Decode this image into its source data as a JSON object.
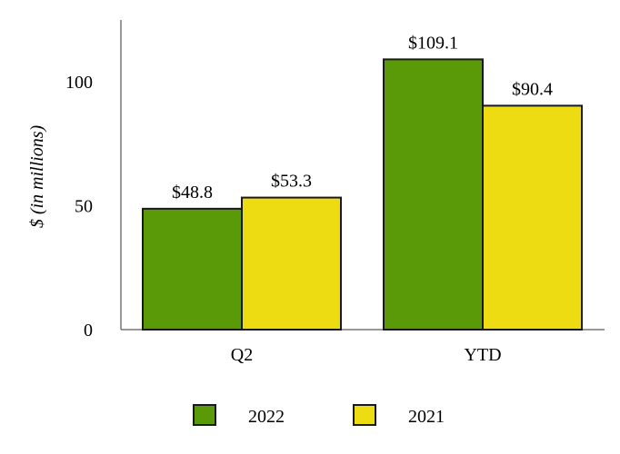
{
  "chart_data": {
    "type": "bar",
    "categories": [
      "Q2",
      "YTD"
    ],
    "series": [
      {
        "name": "2022",
        "values": [
          48.8,
          109.1
        ],
        "labels": [
          "$48.8",
          "$109.1"
        ],
        "color": "#5a9a08"
      },
      {
        "name": "2021",
        "values": [
          53.3,
          90.4
        ],
        "labels": [
          "$53.3",
          "$90.4"
        ],
        "color": "#eedc12"
      }
    ],
    "ylabel": "$ (in millions)",
    "yticks": [
      "0",
      "50",
      "100"
    ],
    "ytick_values": [
      0,
      50,
      100
    ],
    "ylim": [
      0,
      125
    ],
    "grid": false,
    "legend": "bottom-center"
  }
}
